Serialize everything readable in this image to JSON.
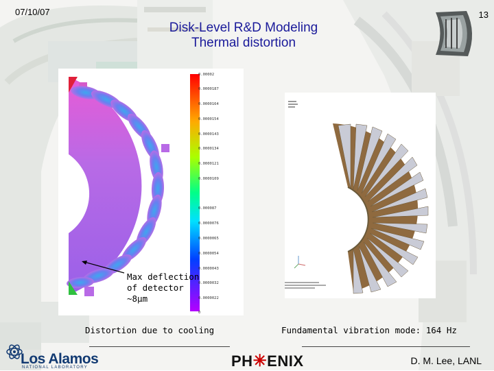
{
  "slide": {
    "date": "07/10/07",
    "page_number": "13",
    "title_line1": "Disk-Level R&D Modeling",
    "title_line2": "Thermal distortion",
    "title_color": "#1a1a9a"
  },
  "left_panel": {
    "annotation_line1": "Max deflection",
    "annotation_line2": "of detector",
    "annotation_line3": "~8µm",
    "caption": "Distortion due to cooling",
    "scale_labels": [
      "0.00002",
      "0.0000187",
      "0.0000164",
      "0.0000154",
      "0.0000143",
      "0.0000134",
      "0.0000121",
      "0.0000109",
      "0.000087",
      "0.0000076",
      "0.0000065",
      "0.0000054",
      "0.0000043",
      "0.0000032",
      "0.0000022",
      "0.0000011",
      "0"
    ]
  },
  "right_panel": {
    "caption": "Fundamental vibration mode: 164 Hz"
  },
  "footer": {
    "author": "D. M. Lee, LANL",
    "phenix_left": "PH",
    "phenix_star": "✳",
    "phenix_right": "ENIX",
    "lanl_name": "Los Alamos",
    "lanl_sub": "NATIONAL LABORATORY"
  }
}
